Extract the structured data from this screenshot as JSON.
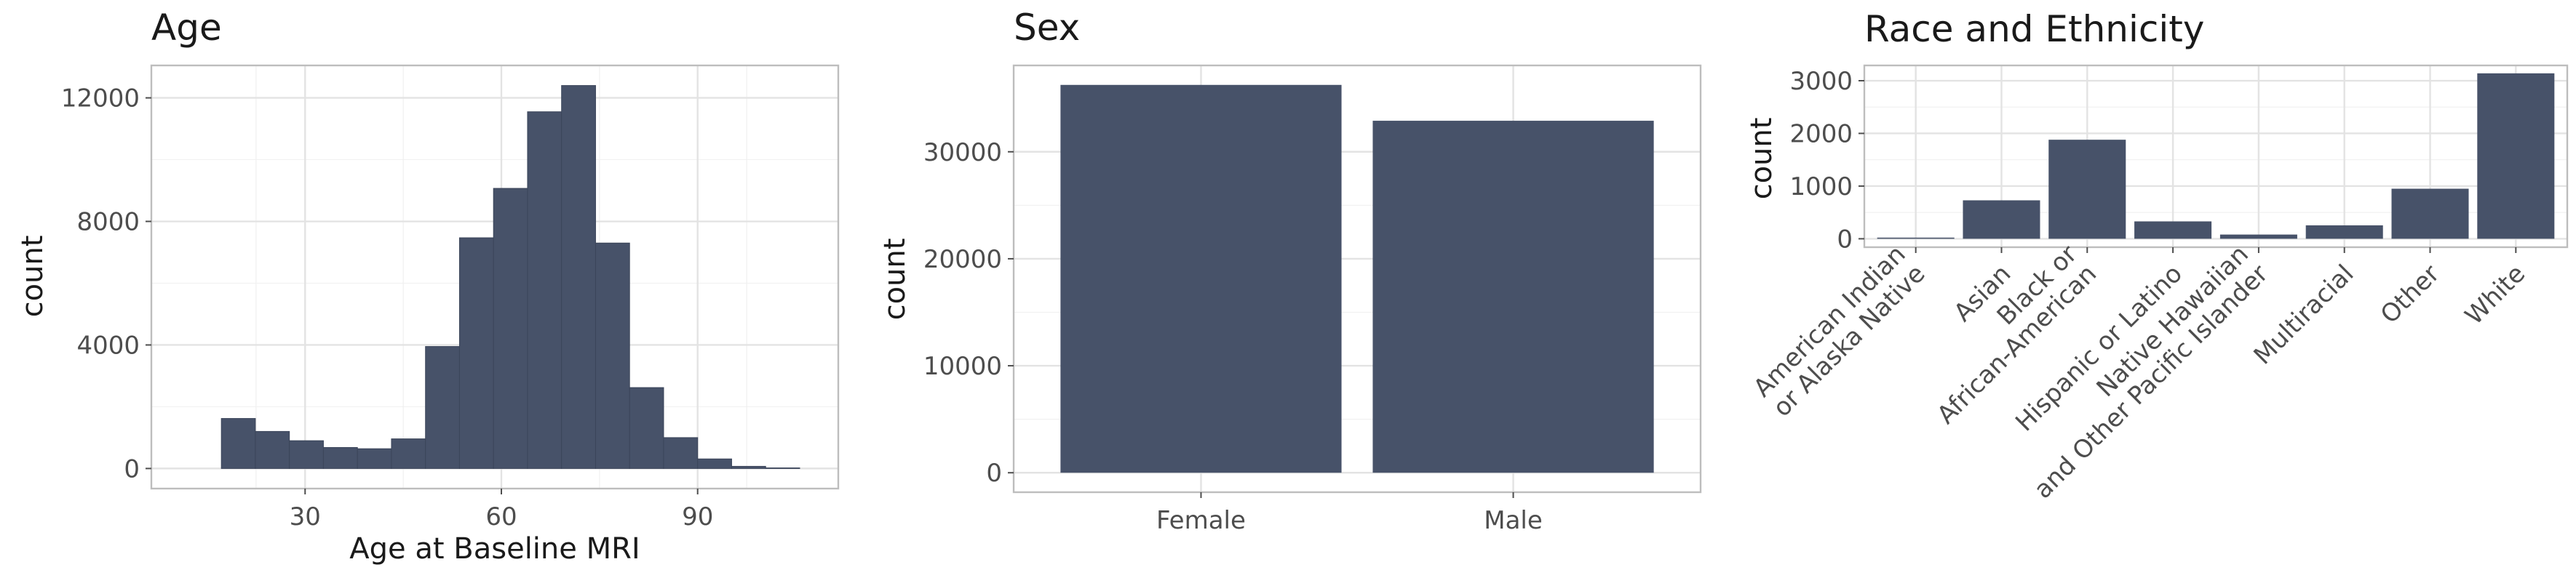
{
  "figure": {
    "bar_color": "#475269",
    "panels": [
      {
        "key": "age",
        "title": "Age",
        "xlabel": "Age at Baseline MRI",
        "ylabel": "count"
      },
      {
        "key": "sex",
        "title": "Sex",
        "xlabel": "",
        "ylabel": "count"
      },
      {
        "key": "race",
        "title": "Race and Ethnicity",
        "xlabel": "",
        "ylabel": "count"
      }
    ]
  },
  "chart_data": [
    {
      "type": "bar",
      "subtype": "histogram",
      "title": "Age",
      "xlabel": "Age at Baseline MRI",
      "ylabel": "count",
      "bins": [
        {
          "x0": 17.2,
          "x1": 22.4,
          "count": 1620
        },
        {
          "x0": 22.4,
          "x1": 27.6,
          "count": 1200
        },
        {
          "x0": 27.6,
          "x1": 32.8,
          "count": 900
        },
        {
          "x0": 32.8,
          "x1": 38.0,
          "count": 680
        },
        {
          "x0": 38.0,
          "x1": 43.2,
          "count": 640
        },
        {
          "x0": 43.2,
          "x1": 48.4,
          "count": 960
        },
        {
          "x0": 48.4,
          "x1": 53.6,
          "count": 3950
        },
        {
          "x0": 53.6,
          "x1": 58.8,
          "count": 7470
        },
        {
          "x0": 58.8,
          "x1": 64.0,
          "count": 9070
        },
        {
          "x0": 64.0,
          "x1": 69.2,
          "count": 11550
        },
        {
          "x0": 69.2,
          "x1": 74.4,
          "count": 12400
        },
        {
          "x0": 74.4,
          "x1": 79.6,
          "count": 7300
        },
        {
          "x0": 79.6,
          "x1": 84.8,
          "count": 2620
        },
        {
          "x0": 84.8,
          "x1": 90.0,
          "count": 1000
        },
        {
          "x0": 90.0,
          "x1": 95.2,
          "count": 310
        },
        {
          "x0": 95.2,
          "x1": 100.4,
          "count": 70
        },
        {
          "x0": 100.4,
          "x1": 105.6,
          "count": 20
        }
      ],
      "xlim": [
        6.5,
        111.5
      ],
      "ylim": [
        -650,
        13050
      ],
      "xticks": [
        30,
        60,
        90
      ],
      "yticks": [
        0,
        4000,
        8000,
        12000
      ],
      "grid": true
    },
    {
      "type": "bar",
      "title": "Sex",
      "xlabel": "",
      "ylabel": "count",
      "categories": [
        "Female",
        "Male"
      ],
      "values": [
        36250,
        32900
      ],
      "ylim": [
        -1820,
        38070
      ],
      "yticks": [
        0,
        10000,
        20000,
        30000
      ],
      "grid": true
    },
    {
      "type": "bar",
      "title": "Race and Ethnicity",
      "xlabel": "",
      "ylabel": "count",
      "categories": [
        "American Indian\nor Alaska Native",
        "Asian",
        "Black or\nAfrican-American",
        "Hispanic or Latino",
        "Native Hawaiian\nand Other Pacific Islander",
        "Multiracial",
        "Other",
        "White"
      ],
      "values": [
        22,
        730,
        1880,
        330,
        80,
        255,
        950,
        3140
      ],
      "ylim": [
        -160,
        3290
      ],
      "yticks": [
        0,
        1000,
        2000,
        3000
      ],
      "grid": true
    }
  ]
}
